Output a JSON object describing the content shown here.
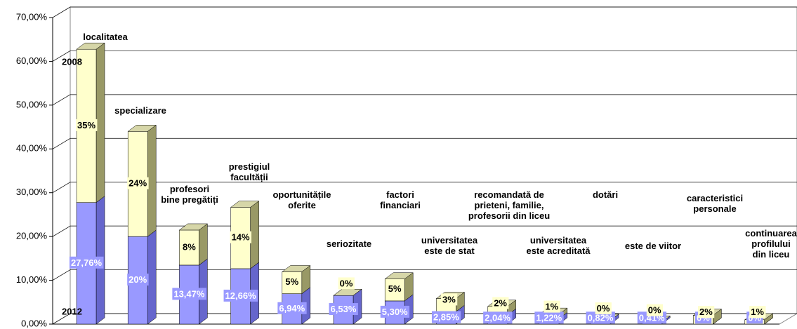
{
  "chart_data": {
    "type": "bar3d_stacked",
    "categories": [
      "localitatea",
      "specializare",
      "profesori\nbine pregătiți",
      "prestigiul\nfacultății",
      "oportunitățile\noferite",
      "seriozitate",
      "factori\nfinanciari",
      "universitatea\neste de stat",
      "recomandată de\nprieteni, familie,\nprofesorii din liceu",
      "universitatea\neste acreditată",
      "dotări",
      "este de viitor",
      "caracteristici\npersonale",
      "continuarea\nprofilului\ndin liceu"
    ],
    "series": [
      {
        "name": "2012",
        "color": "#9999ff",
        "values": [
          27.76,
          20,
          13.47,
          12.66,
          6.94,
          6.53,
          5.3,
          2.85,
          2.04,
          1.22,
          0.82,
          0.41,
          0,
          0
        ],
        "value_labels": [
          "27,76%",
          "20%",
          "13,47%",
          "12,66%",
          "6,94%",
          "6,53%",
          "5,30%",
          "2,85%",
          "2,04%",
          "1,22%",
          "0,82%",
          "0,41%",
          "0%",
          "0%"
        ]
      },
      {
        "name": "2008",
        "color": "#ffffcc",
        "values": [
          35,
          24,
          8,
          14,
          5,
          0,
          5,
          3,
          2,
          1,
          0,
          0,
          2,
          1
        ],
        "value_labels": [
          "35%",
          "24%",
          "8%",
          "14%",
          "5%",
          "0%",
          "5%",
          "3%",
          "2%",
          "1%",
          "0%",
          "0%",
          "2%",
          "1%"
        ]
      }
    ],
    "ylim": [
      0,
      70
    ],
    "yticks": [
      {
        "value": 0,
        "label": "0,00%"
      },
      {
        "value": 10,
        "label": "10,00%"
      },
      {
        "value": 20,
        "label": "20,00%"
      },
      {
        "value": 30,
        "label": "30,00%"
      },
      {
        "value": 40,
        "label": "40,00%"
      },
      {
        "value": 50,
        "label": "50,00%"
      },
      {
        "value": 60,
        "label": "60,00%"
      },
      {
        "value": 70,
        "label": "70,00%"
      }
    ],
    "grid": true
  }
}
